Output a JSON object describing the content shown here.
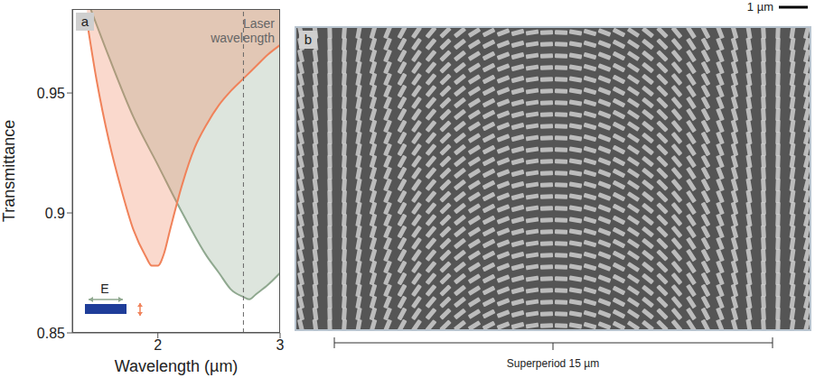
{
  "chart_data": {
    "type": "area",
    "panel": "a",
    "xlabel": "Wavelength (µm)",
    "ylabel": "Transmittance",
    "xlim": [
      1.3,
      3
    ],
    "xticks": [
      2,
      3
    ],
    "ylim": [
      0.85,
      0.985
    ],
    "yticks": [
      0.85,
      0.9,
      0.95
    ],
    "grid": false,
    "series": [
      {
        "color": "#f0825a",
        "x": [
          1.42,
          1.5,
          1.6,
          1.7,
          1.8,
          1.9,
          1.95,
          2.0,
          2.05,
          2.1,
          2.2,
          2.3,
          2.4,
          2.5,
          2.6,
          2.7,
          2.8,
          2.9,
          3.0
        ],
        "values": [
          0.98,
          0.955,
          0.93,
          0.91,
          0.893,
          0.882,
          0.878,
          0.878,
          0.883,
          0.893,
          0.912,
          0.927,
          0.937,
          0.945,
          0.951,
          0.956,
          0.961,
          0.966,
          0.97
        ]
      },
      {
        "color": "#8fa88f",
        "x": [
          1.45,
          1.6,
          1.8,
          2.0,
          2.2,
          2.4,
          2.5,
          2.6,
          2.7,
          2.75,
          2.8,
          2.9,
          3.0
        ],
        "values": [
          0.985,
          0.965,
          0.94,
          0.92,
          0.9,
          0.882,
          0.875,
          0.868,
          0.865,
          0.864,
          0.866,
          0.87,
          0.875
        ]
      }
    ],
    "annotations": [
      {
        "text": "Laser wavelength",
        "x": 2.7,
        "line_style": "dashed"
      },
      {
        "text": "E"
      }
    ]
  },
  "image_panel": {
    "panel": "b",
    "scale_bar": "1 µm",
    "caption": "Superperiod 15 µm"
  }
}
